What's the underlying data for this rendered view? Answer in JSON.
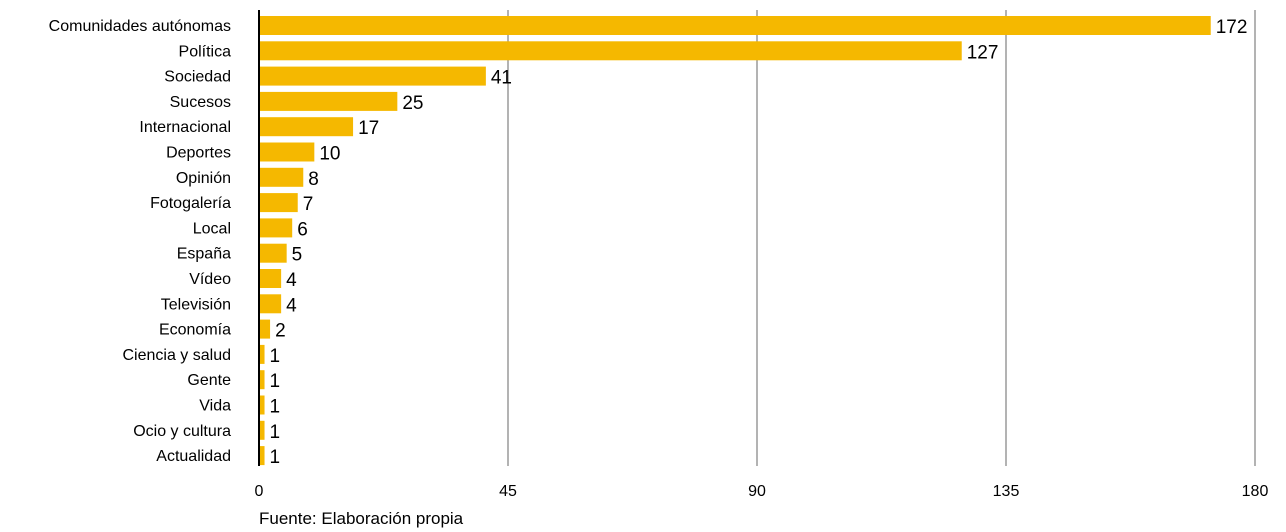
{
  "chart_data": {
    "type": "bar",
    "orientation": "horizontal",
    "categories": [
      "Comunidades autónomas",
      "Política",
      "Sociedad",
      "Sucesos",
      "Internacional",
      "Deportes",
      "Opinión",
      "Fotogalería",
      "Local",
      "España",
      "Vídeo",
      "Televisión",
      "Economía",
      "Ciencia y salud",
      "Gente",
      "Vida",
      "Ocio y cultura",
      "Actualidad"
    ],
    "values": [
      172,
      127,
      41,
      25,
      17,
      10,
      8,
      7,
      6,
      5,
      4,
      4,
      2,
      1,
      1,
      1,
      1,
      1
    ],
    "title": "",
    "xlabel": "",
    "ylabel": "",
    "xlim": [
      0,
      180
    ],
    "xticks": [
      "0",
      "45",
      "90",
      "135",
      "180"
    ],
    "grid": true,
    "bar_color": "#f5b800",
    "grid_color": "#b3b3b3"
  },
  "source_note": "Fuente: Elaboración propia"
}
